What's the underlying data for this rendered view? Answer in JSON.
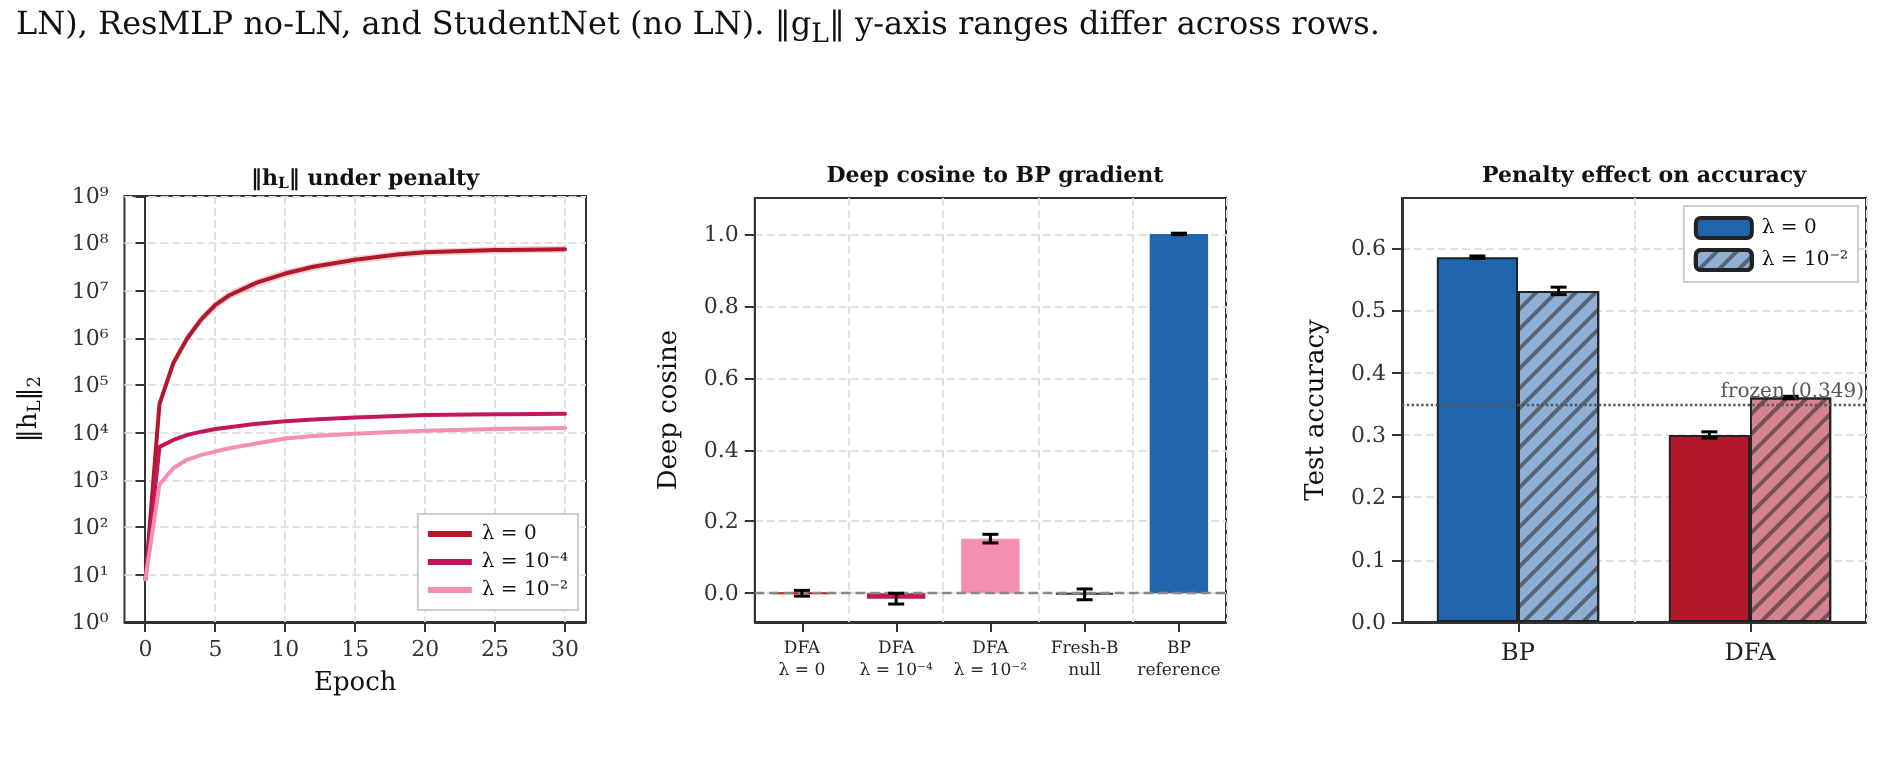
{
  "chart_data": [
    {
      "type": "other",
      "annotations": [
        "LN), ResMLP no-LN, and StudentNet (no LN). ‖g$_{L}$‖ y-axis ranges differ across rows."
      ]
    },
    {
      "type": "line",
      "title": "‖h$_{L}$‖ under penalty",
      "xlabel": "Epoch",
      "ylabel": "‖h$_{L}$‖$_{2}$",
      "x": [
        0,
        1,
        2,
        3,
        4,
        5,
        6,
        8,
        10,
        12,
        15,
        18,
        20,
        25,
        30
      ],
      "series": [
        {
          "name": "λ = 0",
          "color": "#b2182b",
          "values": [
            8,
            40000,
            300000,
            1000000,
            2500000,
            5000000,
            8000000,
            15000000,
            23000000,
            32000000,
            45000000,
            58000000,
            65000000,
            72000000,
            75000000
          ],
          "lower": [
            6,
            30000,
            230000,
            800000,
            2000000,
            4000000,
            6500000,
            12000000,
            19000000,
            26000000,
            37000000,
            48000000,
            54000000,
            60000000,
            63000000
          ],
          "upper": [
            10,
            50000,
            380000,
            1250000,
            3100000,
            6200000,
            9800000,
            18000000,
            28000000,
            38000000,
            54000000,
            69000000,
            77000000,
            85000000,
            89000000
          ]
        },
        {
          "name": "λ = 10⁻⁴",
          "color": "#c2185b",
          "values": [
            8,
            5000,
            7000,
            9000,
            10500,
            12000,
            13000,
            15500,
            17500,
            19000,
            21000,
            22500,
            23500,
            24500,
            25000
          ]
        },
        {
          "name": "λ = 10⁻²",
          "color": "#f48fb1",
          "values": [
            8,
            800,
            1800,
            2700,
            3400,
            4000,
            4700,
            6000,
            7500,
            8500,
            9500,
            10500,
            11000,
            12000,
            12500
          ]
        }
      ],
      "xlim": [
        -1.5,
        31.5
      ],
      "xticks": [
        0,
        5,
        10,
        15,
        20,
        25,
        30
      ],
      "ylim": [
        1,
        1000000000
      ],
      "yticks": [
        {
          "value": 1,
          "label": "10⁰"
        },
        {
          "value": 10,
          "label": "10¹"
        },
        {
          "value": 100,
          "label": "10²"
        },
        {
          "value": 1000,
          "label": "10³"
        },
        {
          "value": 10000,
          "label": "10⁴"
        },
        {
          "value": 100000,
          "label": "10⁵"
        },
        {
          "value": 1000000,
          "label": "10⁶"
        },
        {
          "value": 10000000,
          "label": "10⁷"
        },
        {
          "value": 100000000,
          "label": "10⁸"
        },
        {
          "value": 1000000000,
          "label": "10⁹"
        }
      ],
      "log": "y",
      "grid": true,
      "legend": "bottom right",
      "marker": "none"
    },
    {
      "type": "bar",
      "title": "Deep cosine to BP gradient",
      "ylabel": "Deep cosine",
      "categories": [
        "DFA\nλ = 0",
        "DFA\nλ = 10⁻⁴",
        "DFA\nλ = 10⁻²",
        "Fresh-B\nnull",
        "BP\nreference"
      ],
      "values": [
        0.0,
        -0.015,
        0.152,
        -0.003,
        1.0
      ],
      "errors": [
        0.008,
        0.015,
        0.012,
        0.015,
        0.002
      ],
      "colors": [
        "#b2182b",
        "#c2185b",
        "#f48fb1",
        "#333333",
        "#2166ac"
      ],
      "ylim": [
        -0.08,
        1.1
      ],
      "yticks": [
        {
          "value": 0,
          "label": "0.0"
        },
        {
          "value": 0.2,
          "label": "0.2"
        },
        {
          "value": 0.4,
          "label": "0.4"
        },
        {
          "value": 0.6,
          "label": "0.6"
        },
        {
          "value": 0.8,
          "label": "0.8"
        },
        {
          "value": 1,
          "label": "1.0"
        }
      ],
      "ref_lines": [
        {
          "axis": "y",
          "value": 0,
          "color": "#888888",
          "line_style": "dashed"
        }
      ],
      "grid": true
    },
    {
      "type": "bar",
      "title": "Penalty effect on accuracy",
      "ylabel": "Test accuracy",
      "categories": [
        "BP",
        "DFA"
      ],
      "series": [
        {
          "name": "λ = 0",
          "color": "#2166ac",
          "colors": [
            "#2166ac",
            "#b2182b"
          ],
          "values": [
            0.585,
            0.3
          ],
          "errors": [
            0.002,
            0.005
          ]
        },
        {
          "name": "λ = 10⁻²",
          "color": "#8fb0d6",
          "colors": [
            "#8fb0d6",
            "#d4838f"
          ],
          "values": [
            0.531,
            0.36
          ],
          "errors": [
            0.006,
            0.002
          ]
        }
      ],
      "ylim": [
        0,
        0.68
      ],
      "yticks": [
        {
          "value": 0,
          "label": "0.0"
        },
        {
          "value": 0.1,
          "label": "0.1"
        },
        {
          "value": 0.2,
          "label": "0.2"
        },
        {
          "value": 0.3,
          "label": "0.3"
        },
        {
          "value": 0.4,
          "label": "0.4"
        },
        {
          "value": 0.5,
          "label": "0.5"
        },
        {
          "value": 0.6,
          "label": "0.6"
        }
      ],
      "ref_lines": [
        {
          "axis": "y",
          "value": 0.349,
          "label": "frozen (0.349)",
          "color": "#555555",
          "line_style": "dotted"
        }
      ],
      "grid": true,
      "legend": "top right"
    }
  ]
}
